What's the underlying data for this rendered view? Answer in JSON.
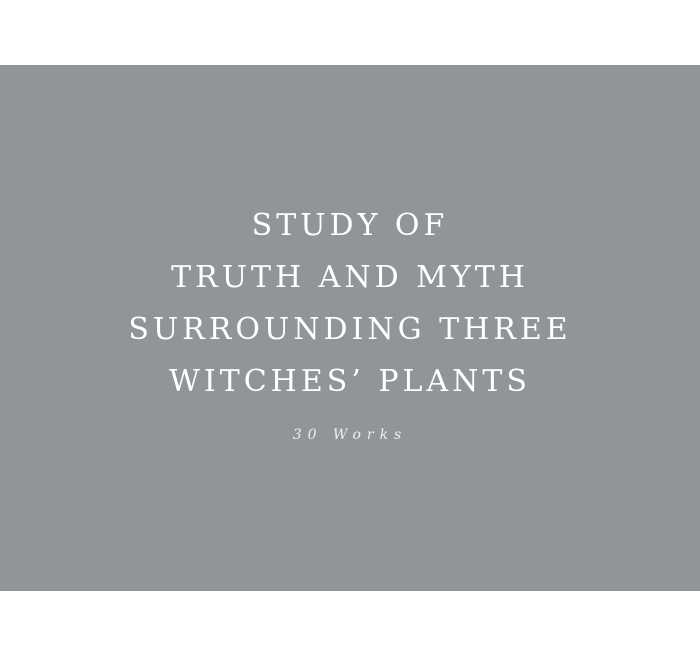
{
  "hero": {
    "title_lines": [
      "STUDY OF",
      "TRUTH AND MYTH",
      "SURROUNDING THREE",
      "WITCHES’ PLANTS"
    ],
    "subtitle": "30 Works"
  },
  "colors": {
    "page_background": "#ffffff",
    "panel_background": "#919599",
    "text": "#ffffff"
  }
}
